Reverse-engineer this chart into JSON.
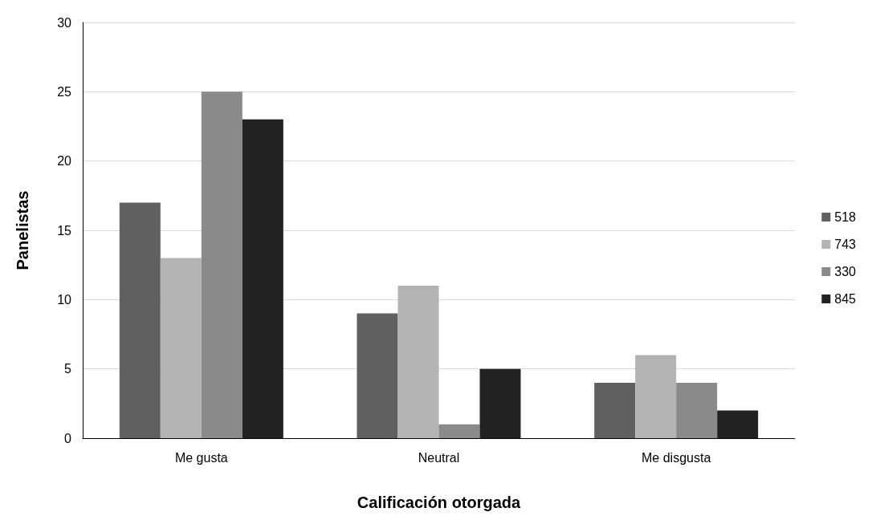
{
  "chart_data": {
    "type": "bar",
    "xlabel": "Calificación otorgada",
    "ylabel": "Panelistas",
    "categories": [
      "Me gusta",
      "Neutral",
      "Me disgusta"
    ],
    "series": [
      {
        "name": "518",
        "color": "#606060",
        "values": [
          17,
          9,
          4
        ]
      },
      {
        "name": "743",
        "color": "#b3b3b3",
        "values": [
          13,
          11,
          6
        ]
      },
      {
        "name": "330",
        "color": "#8a8a8a",
        "values": [
          25,
          1,
          4
        ]
      },
      {
        "name": "845",
        "color": "#222222",
        "values": [
          23,
          5,
          2
        ]
      }
    ],
    "ylim": [
      0,
      30
    ],
    "yticks": [
      0,
      5,
      10,
      15,
      20,
      25,
      30
    ],
    "grid": "y",
    "legend": "right"
  }
}
